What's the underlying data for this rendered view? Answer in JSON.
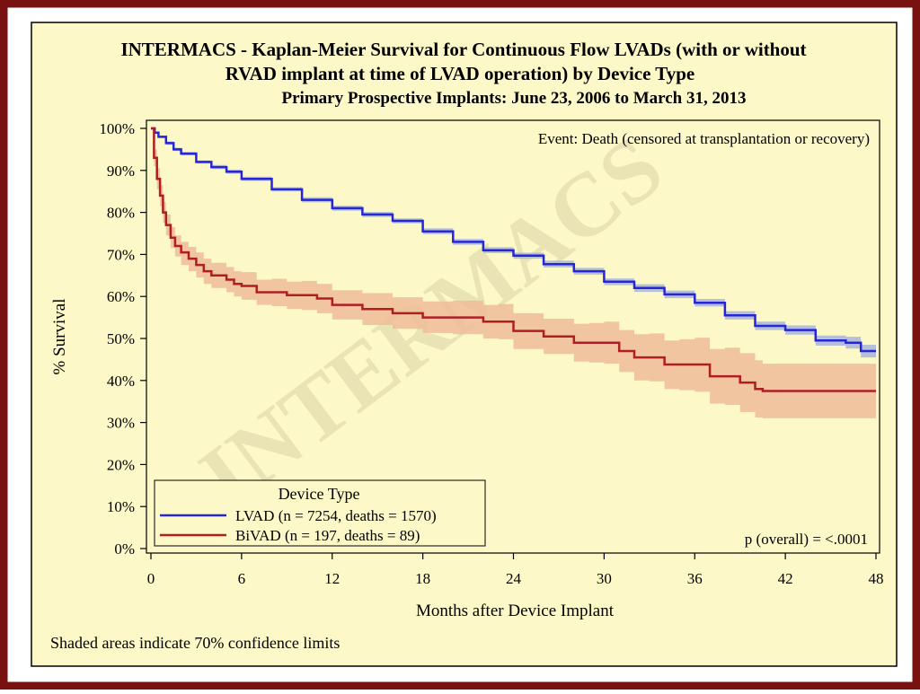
{
  "colors": {
    "frame": "#7a1111",
    "panel_bg": "#fdf8c8",
    "lvad_line": "#2626d6",
    "lvad_band": "#a8b6d8",
    "bivad_line": "#b01e24",
    "bivad_band": "#eebc98",
    "watermark": "#e6dfb2"
  },
  "chart_data": {
    "type": "line",
    "title": "INTERMACS - Kaplan-Meier Survival for Continuous Flow LVADs (with or without",
    "title_line2": "RVAD implant at time of LVAD operation) by Device Type",
    "subtitle": "Primary Prospective Implants: June 23, 2006 to March 31, 2013",
    "watermark": "INTERMACS",
    "event_note": "Event: Death (censored at transplantation or recovery)",
    "p_value_note": "p (overall) = <.0001",
    "footnote": "Shaded areas indicate 70% confidence limits",
    "xlabel": "Months after Device Implant",
    "ylabel": "% Survival",
    "xlim": [
      0,
      48
    ],
    "ylim": [
      0,
      100
    ],
    "x_ticks": [
      "0",
      "6",
      "12",
      "18",
      "24",
      "30",
      "36",
      "42",
      "48"
    ],
    "y_ticks": [
      "0%",
      "10%",
      "20%",
      "30%",
      "40%",
      "50%",
      "60%",
      "70%",
      "80%",
      "90%",
      "100%"
    ],
    "legend": {
      "title": "Device Type",
      "position": "bottom-left"
    },
    "series": [
      {
        "name": "LVAD (n = 7254, deaths = 1570)",
        "x": [
          0,
          0.25,
          0.5,
          1,
          1.5,
          2,
          3,
          4,
          5,
          6,
          8,
          10,
          12,
          14,
          16,
          18,
          20,
          22,
          24,
          26,
          28,
          30,
          32,
          34,
          36,
          38,
          40,
          42,
          44,
          46,
          47,
          48
        ],
        "y": [
          100,
          99,
          98,
          96.5,
          95,
          94,
          92,
          90.8,
          89.7,
          88,
          85.5,
          83,
          81,
          79.5,
          78,
          75.5,
          73,
          71,
          69.7,
          67.7,
          66,
          63.5,
          62,
          60.5,
          58.5,
          55.5,
          53,
          52,
          49.5,
          49,
          47,
          47
        ],
        "lower": [
          100,
          98.8,
          97.7,
          96.1,
          94.6,
          93.6,
          91.6,
          90.3,
          89.2,
          87.5,
          85,
          82.4,
          80.4,
          78.9,
          77.4,
          74.8,
          72.3,
          70.3,
          69,
          66.9,
          65.2,
          62.7,
          61.1,
          59.6,
          57.6,
          54.5,
          52,
          50.9,
          48.3,
          47.6,
          45.5,
          45.5
        ],
        "upper": [
          100,
          99.2,
          98.3,
          96.9,
          95.4,
          94.4,
          92.4,
          91.3,
          90.2,
          88.5,
          86,
          83.6,
          81.6,
          80.1,
          78.6,
          76.2,
          73.7,
          71.7,
          70.4,
          68.5,
          66.8,
          64.3,
          62.9,
          61.4,
          59.4,
          56.5,
          54,
          53.1,
          50.7,
          50.4,
          48.5,
          48.5
        ]
      },
      {
        "name": "BiVAD (n = 197, deaths = 89)",
        "x": [
          0,
          0.2,
          0.4,
          0.6,
          0.8,
          1,
          1.3,
          1.6,
          2,
          2.5,
          3,
          3.5,
          4,
          5,
          5.5,
          6,
          7,
          8,
          9,
          10,
          11,
          12,
          14,
          16,
          18,
          20,
          22,
          23,
          24,
          26,
          28,
          29,
          30,
          31,
          32,
          33,
          34,
          35,
          36,
          37,
          38,
          39,
          40,
          40.5,
          42,
          44,
          46,
          48
        ],
        "y": [
          100,
          93,
          88,
          84,
          80,
          77,
          74,
          72,
          70.5,
          69,
          67.5,
          66,
          65,
          64,
          63,
          62.5,
          61,
          61,
          60.3,
          60.3,
          59.5,
          58,
          57,
          56,
          55,
          55,
          54,
          54,
          51.8,
          50.5,
          49,
          49,
          49,
          47,
          45.5,
          45.5,
          43.8,
          43.8,
          43.8,
          41,
          41,
          39.5,
          38,
          37.5,
          37.5,
          37.5,
          37.5,
          37.5
        ],
        "lower": [
          100,
          91,
          85.5,
          81.5,
          77.5,
          74.5,
          71.5,
          69.5,
          67.5,
          66,
          64.5,
          63,
          62,
          61,
          60,
          59.2,
          58,
          57.7,
          57,
          56.8,
          56,
          54.5,
          53.2,
          52.3,
          51.3,
          51,
          50,
          49.8,
          47.5,
          46.3,
          44.5,
          44.3,
          44,
          42,
          40,
          39.8,
          38,
          37.7,
          37.3,
          34.5,
          34.2,
          32.5,
          31.2,
          31,
          31,
          31,
          31,
          31
        ],
        "upper": [
          100,
          95,
          90.5,
          86.5,
          82.5,
          79.5,
          76.5,
          74.5,
          73,
          71.8,
          70.5,
          69,
          68,
          67,
          66,
          65.8,
          64,
          64.2,
          63.5,
          63.7,
          63,
          61.5,
          60.8,
          59.8,
          58.8,
          59,
          58,
          58.2,
          56,
          54.7,
          53.5,
          53.7,
          54,
          52,
          51,
          51.2,
          49.5,
          49.8,
          50.2,
          47.5,
          47.8,
          46.5,
          44.8,
          44,
          44,
          44,
          44,
          44
        ]
      }
    ]
  }
}
